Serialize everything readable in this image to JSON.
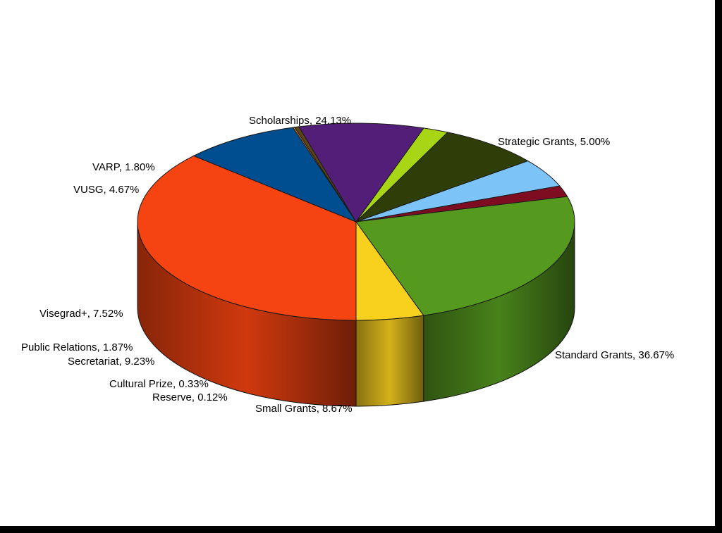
{
  "chart_data": {
    "type": "pie",
    "title": "",
    "unit": "%",
    "slices": [
      {
        "label": "Standard Grants",
        "value": 36.67,
        "color": "#f54311",
        "display": "Standard Grants, 36.67%"
      },
      {
        "label": "Small Grants",
        "value": 8.67,
        "color": "#004d90",
        "display": "Small Grants, 8.67%"
      },
      {
        "label": "Reserve",
        "value": 0.12,
        "color": "#f28a1e",
        "display": "Reserve, 0.12%"
      },
      {
        "label": "Cultural Prize",
        "value": 0.33,
        "color": "#5a4616",
        "display": "Cultural Prize, 0.33%"
      },
      {
        "label": "Secretariat",
        "value": 9.23,
        "color": "#521e77",
        "display": "Secretariat, 9.23%"
      },
      {
        "label": "Public Relations",
        "value": 1.87,
        "color": "#a8d616",
        "display": "Public Relations, 1.87%"
      },
      {
        "label": "Visegrad+",
        "value": 7.52,
        "color": "#2f3e09",
        "display": "Visegrad+, 7.52%"
      },
      {
        "label": "VUSG",
        "value": 4.67,
        "color": "#7cc3f8",
        "display": "VUSG, 4.67%"
      },
      {
        "label": "VARP",
        "value": 1.8,
        "color": "#7f0d22",
        "display": "VARP, 1.80%"
      },
      {
        "label": "Scholarships",
        "value": 24.13,
        "color": "#55991e",
        "display": "Scholarships, 24.13%"
      },
      {
        "label": "Strategic Grants",
        "value": 5.0,
        "color": "#f8d01e",
        "display": "Strategic Grants, 5.00%"
      }
    ],
    "style": "3d",
    "legend": "none"
  }
}
